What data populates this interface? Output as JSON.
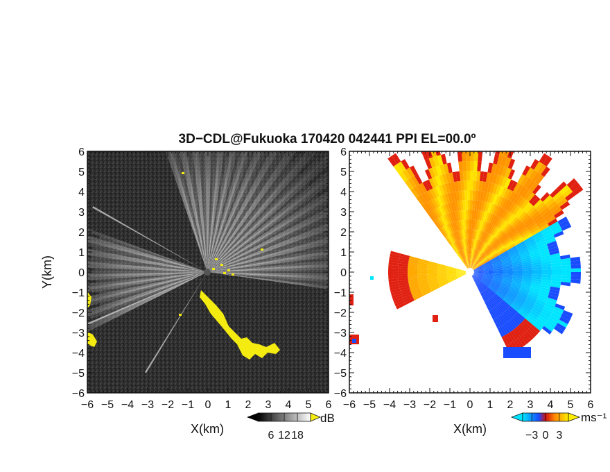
{
  "figure": {
    "title": "3D−CDL@Fukuoka 170420 042441 PPI EL=00.0º"
  },
  "chart_data": [
    {
      "type": "heatmap",
      "name": "reflectivity-ppi",
      "xlabel": "X(km)",
      "ylabel": "Y(km)",
      "xlim": [
        -6,
        6
      ],
      "ylim": [
        -6,
        6
      ],
      "xticks": [
        "−6",
        "−5",
        "−4",
        "−3",
        "−2",
        "−1",
        "0",
        "1",
        "2",
        "3",
        "4",
        "5",
        "6"
      ],
      "yticks": [
        "−6",
        "−5",
        "−4",
        "−3",
        "−2",
        "−1",
        "0",
        "1",
        "2",
        "3",
        "4",
        "5",
        "6"
      ],
      "colorbar": {
        "unit": "dB",
        "ticks": [
          "6",
          "12",
          "18"
        ],
        "range": [
          0,
          24
        ]
      },
      "colors": {
        "background": "#2e2e2e",
        "beam": "#ffffff",
        "overlay": "#f4ec10"
      }
    },
    {
      "type": "heatmap",
      "name": "doppler-velocity-ppi",
      "xlabel": "X(km)",
      "ylabel": "",
      "xlim": [
        -6,
        6
      ],
      "ylim": [
        -6,
        6
      ],
      "xticks": [
        "−6",
        "−5",
        "−4",
        "−3",
        "−2",
        "−1",
        "0",
        "1",
        "2",
        "3",
        "4",
        "5",
        "6"
      ],
      "yticks": [
        "−6",
        "−5",
        "−4",
        "−3",
        "−2",
        "−1",
        "0",
        "1",
        "2",
        "3",
        "4",
        "5",
        "6"
      ],
      "colorbar": {
        "unit": "ms⁻¹",
        "ticks": [
          "−3",
          "0",
          "3"
        ],
        "range": [
          -5,
          5
        ]
      },
      "colors": {
        "negative_far": "#00e5ff",
        "negative_near": "#1a4cff",
        "positive_near": "#ff8800",
        "positive_far": "#ffee00",
        "edge": "#e02010"
      }
    }
  ]
}
